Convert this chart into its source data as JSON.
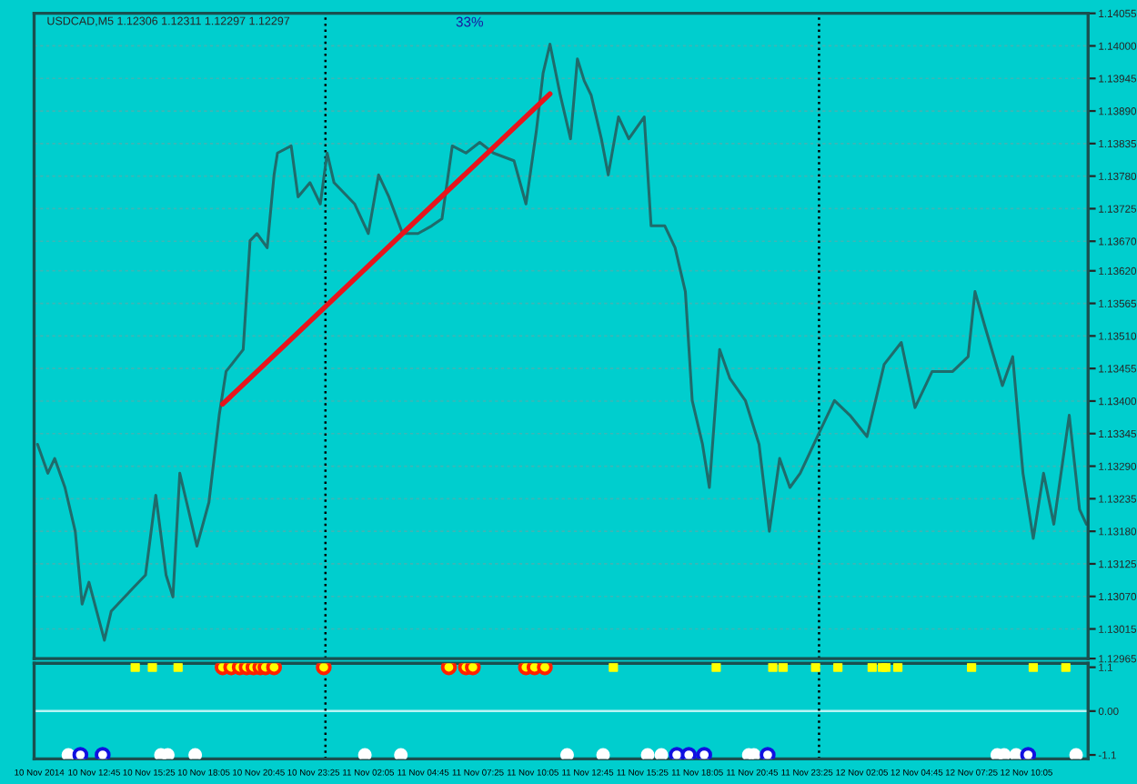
{
  "chart_data": [
    {
      "type": "line",
      "title": "USDCAD,M5 1.12306 1.12311 1.12297 1.12297",
      "annotations": [
        "33%"
      ],
      "x": [
        "2014-11-10T10:00",
        "2014-11-10T10:30",
        "2014-11-10T10:50",
        "2014-11-10T11:20",
        "2014-11-10T11:50",
        "2014-11-10T12:10",
        "2014-11-10T12:30",
        "2014-11-10T13:15",
        "2014-11-10T13:35",
        "2014-11-10T14:35",
        "2014-11-10T15:15",
        "2014-11-10T15:45",
        "2014-11-10T16:15",
        "2014-11-10T16:35",
        "2014-11-10T16:55",
        "2014-11-10T17:15",
        "2014-11-10T17:45",
        "2014-11-10T18:20",
        "2014-11-10T18:50",
        "2014-11-10T19:10",
        "2014-11-10T20:00",
        "2014-11-10T20:20",
        "2014-11-10T20:40",
        "2014-11-10T21:10",
        "2014-11-10T21:30",
        "2014-11-10T21:40",
        "2014-11-10T22:20",
        "2014-11-10T22:40",
        "2014-11-10T23:15",
        "2014-11-10T23:45",
        "2014-11-11T00:05",
        "2014-11-11T00:25",
        "2014-11-11T01:25",
        "2014-11-11T02:05",
        "2014-11-11T02:35",
        "2014-11-11T03:05",
        "2014-11-11T03:45",
        "2014-11-11T04:30",
        "2014-11-11T05:10",
        "2014-11-11T05:40",
        "2014-11-11T06:10",
        "2014-11-11T06:50",
        "2014-11-11T07:30",
        "2014-11-11T08:10",
        "2014-11-11T09:10",
        "2014-11-11T09:45",
        "2014-11-11T10:15",
        "2014-11-11T10:35",
        "2014-11-11T10:55",
        "2014-11-11T11:25",
        "2014-11-11T11:55",
        "2014-11-11T12:15",
        "2014-11-11T12:35",
        "2014-11-11T12:55",
        "2014-11-11T13:25",
        "2014-11-11T13:45",
        "2014-11-11T14:15",
        "2014-11-11T14:45",
        "2014-11-11T15:30",
        "2014-11-11T15:50",
        "2014-11-11T16:30",
        "2014-11-11T17:00",
        "2014-11-11T17:30",
        "2014-11-11T17:50",
        "2014-11-11T18:20",
        "2014-11-11T18:40",
        "2014-11-11T19:10",
        "2014-11-11T19:40",
        "2014-11-11T20:25",
        "2014-11-11T21:05",
        "2014-11-11T21:35",
        "2014-11-11T22:05",
        "2014-11-11T22:35",
        "2014-11-11T23:05",
        "2014-11-12T00:05",
        "2014-11-12T00:45",
        "2014-11-12T01:30",
        "2014-11-12T02:20",
        "2014-11-12T03:10",
        "2014-11-12T04:00",
        "2014-11-12T04:40",
        "2014-11-12T05:30",
        "2014-11-12T06:30",
        "2014-11-12T07:15",
        "2014-11-12T07:35",
        "2014-11-12T08:05",
        "2014-11-12T08:55",
        "2014-11-12T09:25",
        "2014-11-12T09:55",
        "2014-11-12T10:25",
        "2014-11-12T10:55",
        "2014-11-12T11:25",
        "2014-11-12T12:10",
        "2014-11-12T12:40",
        "2014-11-12T13:00"
      ],
      "series": [
        {
          "color": "#1f6b6b",
          "values": [
            1.13327,
            1.13278,
            1.13303,
            1.13254,
            1.1318,
            1.13057,
            1.13094,
            1.12996,
            1.13045,
            1.13082,
            1.13106,
            1.13241,
            1.13106,
            1.13069,
            1.13278,
            1.13229,
            1.13155,
            1.13229,
            1.13376,
            1.1345,
            1.13487,
            1.13671,
            1.13683,
            1.13659,
            1.13782,
            1.13819,
            1.13831,
            1.13745,
            1.13769,
            1.13733,
            1.13819,
            1.13769,
            1.13733,
            1.13683,
            1.13782,
            1.13745,
            1.13683,
            1.13683,
            1.13696,
            1.13708,
            1.13831,
            1.13819,
            1.13837,
            1.13819,
            1.13806,
            1.13733,
            1.13855,
            1.13954,
            1.14003,
            1.13917,
            1.13843,
            1.13978,
            1.13941,
            1.13917,
            1.13843,
            1.13782,
            1.1388,
            1.13843,
            1.1388,
            1.13696,
            1.13696,
            1.13659,
            1.13585,
            1.13401,
            1.13327,
            1.13254,
            1.13487,
            1.13438,
            1.13401,
            1.13327,
            1.1318,
            1.13303,
            1.13254,
            1.13278,
            1.13352,
            1.13401,
            1.13376,
            1.1334,
            1.13462,
            1.13499,
            1.13389,
            1.1345,
            1.1345,
            1.13475,
            1.13585,
            1.13524,
            1.13426,
            1.13475,
            1.13278,
            1.13168,
            1.13278,
            1.13192,
            1.13376,
            1.13217,
            1.13192
          ]
        },
        {
          "type": "line",
          "color": "#e8141c",
          "x": [
            "2014-11-10T19:00",
            "2014-11-11T10:55"
          ],
          "values": [
            1.13395,
            1.13919
          ]
        }
      ],
      "xlim": [
        "2014-11-10T09:50",
        "2014-11-12T13:05"
      ],
      "ylim": [
        1.12965,
        1.14055
      ],
      "yticks": [
        {
          "value": 1.14055,
          "label": "1.14055"
        },
        {
          "value": 1.14,
          "label": "1.14000"
        },
        {
          "value": 1.13945,
          "label": "1.13945"
        },
        {
          "value": 1.1389,
          "label": "1.13890"
        },
        {
          "value": 1.13835,
          "label": "1.13835"
        },
        {
          "value": 1.1378,
          "label": "1.13780"
        },
        {
          "value": 1.13725,
          "label": "1.13725"
        },
        {
          "value": 1.1367,
          "label": "1.13670"
        },
        {
          "value": 1.1362,
          "label": "1.13620"
        },
        {
          "value": 1.13565,
          "label": "1.13565"
        },
        {
          "value": 1.1351,
          "label": "1.13510"
        },
        {
          "value": 1.13455,
          "label": "1.13455"
        },
        {
          "value": 1.134,
          "label": "1.13400"
        },
        {
          "value": 1.13345,
          "label": "1.13345"
        },
        {
          "value": 1.1329,
          "label": "1.13290"
        },
        {
          "value": 1.13235,
          "label": "1.13235"
        },
        {
          "value": 1.1318,
          "label": "1.13180"
        },
        {
          "value": 1.13125,
          "label": "1.13125"
        },
        {
          "value": 1.1307,
          "label": "1.13070"
        },
        {
          "value": 1.13015,
          "label": "1.13015"
        },
        {
          "value": 1.12965,
          "label": "1.12965"
        }
      ],
      "tick_labels": "y",
      "grid": true,
      "ref_lines": [
        {
          "axis": "x",
          "value": "2014-11-11T00:00",
          "color": "#000000",
          "line_style": "dotted"
        },
        {
          "axis": "x",
          "value": "2014-11-12T00:00",
          "color": "#000000",
          "line_style": "dotted"
        }
      ]
    },
    {
      "type": "scatter",
      "series": [
        {
          "color": "#ffff00",
          "marker": "square",
          "x": [
            "2014-11-10T14:45",
            "2014-11-10T15:35",
            "2014-11-10T16:50",
            "2014-11-11T14:00",
            "2014-11-11T19:00",
            "2014-11-11T21:45",
            "2014-11-11T22:15",
            "2014-11-11T23:50",
            "2014-11-12T00:55",
            "2014-11-12T02:35",
            "2014-11-12T03:05",
            "2014-11-12T03:15",
            "2014-11-12T03:50",
            "2014-11-12T07:25",
            "2014-11-12T10:25",
            "2014-11-12T12:00"
          ],
          "values": [
            1.1,
            1.1,
            1.1,
            1.1,
            1.1,
            1.1,
            1.1,
            1.1,
            1.1,
            1.1,
            1.1,
            1.1,
            1.1,
            1.1,
            1.1,
            1.1
          ]
        },
        {
          "color": "#ff2000",
          "marker": "circle",
          "x": [
            "2014-11-10T19:00",
            "2014-11-10T19:25",
            "2014-11-10T19:50",
            "2014-11-10T20:10",
            "2014-11-10T20:30",
            "2014-11-10T20:50",
            "2014-11-10T21:05",
            "2014-11-10T21:30",
            "2014-11-10T23:55",
            "2014-11-11T06:00",
            "2014-11-11T06:50",
            "2014-11-11T07:10",
            "2014-11-11T09:45",
            "2014-11-11T10:10",
            "2014-11-11T10:40"
          ],
          "values": [
            1.1,
            1.1,
            1.1,
            1.1,
            1.1,
            1.1,
            1.1,
            1.1,
            1.1,
            1.1,
            1.1,
            1.1,
            1.1,
            1.1,
            1.1
          ]
        },
        {
          "color": "#ffffff",
          "marker": "circle",
          "x": [
            "2014-11-10T11:30",
            "2014-11-10T16:00",
            "2014-11-10T16:20",
            "2014-11-10T17:40",
            "2014-11-11T01:55",
            "2014-11-11T03:40",
            "2014-11-11T11:45",
            "2014-11-11T13:30",
            "2014-11-11T15:40",
            "2014-11-11T16:20",
            "2014-11-11T20:35",
            "2014-11-11T20:50",
            "2014-11-12T08:40",
            "2014-11-12T09:00",
            "2014-11-12T09:35",
            "2014-11-12T12:30"
          ],
          "values": [
            -1.1,
            -1.1,
            -1.1,
            -1.1,
            -1.1,
            -1.1,
            -1.1,
            -1.1,
            -1.1,
            -1.1,
            -1.1,
            -1.1,
            -1.1,
            -1.1,
            -1.1,
            -1.1
          ]
        },
        {
          "color": "#1010e0",
          "marker": "circle",
          "x": [
            "2014-11-10T12:05",
            "2014-11-10T13:10",
            "2014-11-11T17:05",
            "2014-11-11T17:40",
            "2014-11-11T18:25",
            "2014-11-11T21:30",
            "2014-11-12T10:10"
          ],
          "values": [
            -1.1,
            -1.1,
            -1.1,
            -1.1,
            -1.1,
            -1.1,
            -1.1
          ]
        }
      ],
      "xlim": [
        "2014-11-10T09:50",
        "2014-11-12T13:05"
      ],
      "ylim": [
        -1.2,
        1.2
      ],
      "xticks": [
        {
          "value": "2014-11-10T10:05",
          "label": "10 Nov 2014"
        },
        {
          "value": "2014-11-10T12:45",
          "label": "10 Nov 12:45"
        },
        {
          "value": "2014-11-10T15:25",
          "label": "10 Nov 15:25"
        },
        {
          "value": "2014-11-10T18:05",
          "label": "10 Nov 18:05"
        },
        {
          "value": "2014-11-10T20:45",
          "label": "10 Nov 20:45"
        },
        {
          "value": "2014-11-10T23:25",
          "label": "10 Nov 23:25"
        },
        {
          "value": "2014-11-11T02:05",
          "label": "11 Nov 02:05"
        },
        {
          "value": "2014-11-11T04:45",
          "label": "11 Nov 04:45"
        },
        {
          "value": "2014-11-11T07:25",
          "label": "11 Nov 07:25"
        },
        {
          "value": "2014-11-11T10:05",
          "label": "11 Nov 10:05"
        },
        {
          "value": "2014-11-11T12:45",
          "label": "11 Nov 12:45"
        },
        {
          "value": "2014-11-11T15:25",
          "label": "11 Nov 15:25"
        },
        {
          "value": "2014-11-11T18:05",
          "label": "11 Nov 18:05"
        },
        {
          "value": "2014-11-11T20:45",
          "label": "11 Nov 20:45"
        },
        {
          "value": "2014-11-11T23:25",
          "label": "11 Nov 23:25"
        },
        {
          "value": "2014-11-12T02:05",
          "label": "12 Nov 02:05"
        },
        {
          "value": "2014-11-12T04:45",
          "label": "12 Nov 04:45"
        },
        {
          "value": "2014-11-12T07:25",
          "label": "12 Nov 07:25"
        },
        {
          "value": "2014-11-12T10:05",
          "label": "12 Nov 10:05"
        }
      ],
      "yticks": [
        1.1,
        {
          "value": 0,
          "label": "0.00"
        },
        -1.1
      ],
      "ref_lines": [
        {
          "axis": "y",
          "value": 0,
          "color": "#b8f4f4",
          "line_style": "solid"
        },
        {
          "axis": "x",
          "value": "2014-11-11T00:00",
          "color": "#000000",
          "line_style": "dotted"
        },
        {
          "axis": "x",
          "value": "2014-11-12T00:00",
          "color": "#000000",
          "line_style": "dotted"
        }
      ]
    }
  ]
}
